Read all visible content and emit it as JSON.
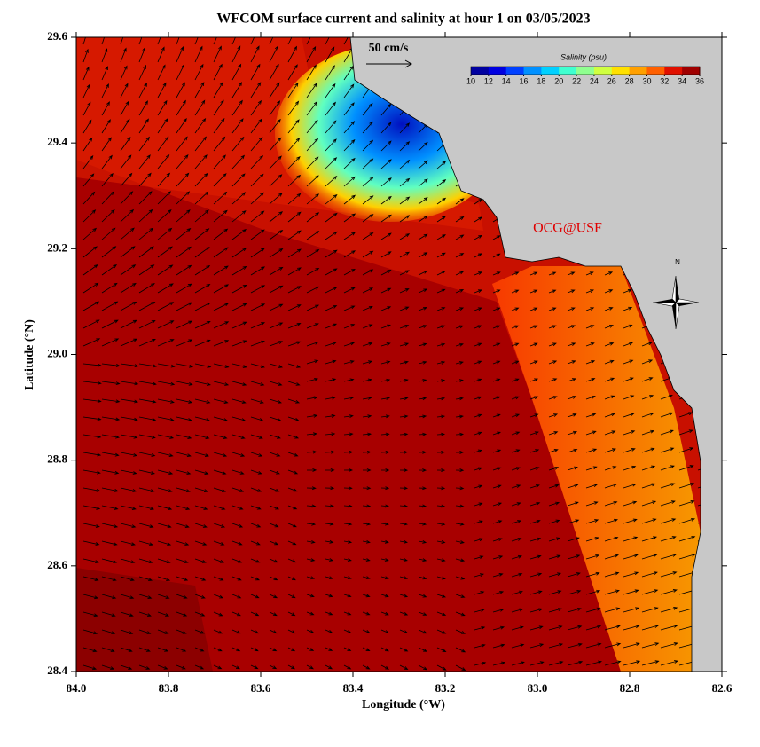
{
  "map": {
    "title": "WFCOM surface current and salinity at hour 1 on 03/05/2023",
    "xlabel": "Longitude (°W)",
    "ylabel": "Latitude (°N)",
    "xlim": [
      84.0,
      82.6
    ],
    "ylim": [
      28.4,
      29.6
    ],
    "xticks": [
      {
        "value": 84.0,
        "label": "84.0"
      },
      83.8,
      83.6,
      83.4,
      83.2,
      {
        "value": 83.0,
        "label": "83.0"
      },
      82.8,
      82.6
    ],
    "yticks": [
      28.4,
      28.6,
      28.8,
      {
        "value": 29.0,
        "label": "29.0"
      },
      29.2,
      29.4,
      29.6
    ],
    "scale_label": "50 cm/s",
    "credit": "OCG@USF",
    "compass": "N",
    "colorbar": {
      "label": "Salinity (psu)",
      "lim": [
        10,
        36
      ],
      "ticks": [
        10,
        12,
        14,
        16,
        18,
        20,
        22,
        24,
        26,
        28,
        30,
        32,
        34,
        36
      ],
      "colors": [
        "#0000a0",
        "#0000e0",
        "#0040ff",
        "#0090ff",
        "#00d0ff",
        "#40ffd0",
        "#90ff90",
        "#d0ff40",
        "#ffe000",
        "#ffa000",
        "#ff6000",
        "#e01000",
        "#a00000"
      ]
    }
  }
}
